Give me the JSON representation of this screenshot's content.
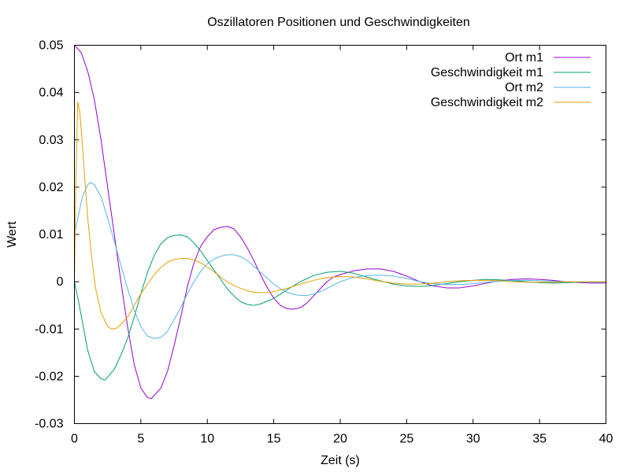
{
  "chart_data": {
    "type": "line",
    "title": "Oszillatoren Positionen und Geschwindigkeiten",
    "xlabel": "Zeit (s)",
    "ylabel": "Wert",
    "xlim": [
      0,
      40
    ],
    "ylim": [
      -0.03,
      0.05
    ],
    "x_ticks": [
      0,
      5,
      10,
      15,
      20,
      25,
      30,
      35,
      40
    ],
    "y_ticks": [
      -0.03,
      -0.02,
      -0.01,
      0,
      0.01,
      0.02,
      0.03,
      0.04,
      0.05
    ],
    "x_tick_labels": [
      "0",
      "5",
      "10",
      "15",
      "20",
      "25",
      "30",
      "35",
      "40"
    ],
    "y_tick_labels": [
      "-0.03",
      "-0.02",
      "-0.01",
      "0",
      "0.01",
      "0.02",
      "0.03",
      "0.04",
      "0.05"
    ],
    "grid": false,
    "legend_position": "top-right",
    "series": [
      {
        "name": "Ort m1",
        "color": "#9400d3",
        "points": [
          [
            0,
            0.05
          ],
          [
            0.5,
            0.0485
          ],
          [
            1,
            0.0445
          ],
          [
            1.5,
            0.0385
          ],
          [
            2,
            0.03
          ],
          [
            2.5,
            0.02
          ],
          [
            3,
            0.01
          ],
          [
            3.5,
            0.0
          ],
          [
            4,
            -0.0095
          ],
          [
            4.5,
            -0.0175
          ],
          [
            5,
            -0.0225
          ],
          [
            5.5,
            -0.0245
          ],
          [
            5.8,
            -0.0247
          ],
          [
            6.5,
            -0.0225
          ],
          [
            7,
            -0.019
          ],
          [
            7.5,
            -0.0135
          ],
          [
            8,
            -0.0075
          ],
          [
            8.5,
            -0.001
          ],
          [
            9,
            0.004
          ],
          [
            9.5,
            0.0075
          ],
          [
            10,
            0.0095
          ],
          [
            10.5,
            0.011
          ],
          [
            11,
            0.0115
          ],
          [
            11.5,
            0.0117
          ],
          [
            12,
            0.0112
          ],
          [
            12.5,
            0.0095
          ],
          [
            13,
            0.0072
          ],
          [
            13.5,
            0.0045
          ],
          [
            14,
            0.0015
          ],
          [
            14.5,
            -0.0012
          ],
          [
            15,
            -0.0035
          ],
          [
            15.5,
            -0.005
          ],
          [
            16,
            -0.0057
          ],
          [
            16.5,
            -0.0058
          ],
          [
            17,
            -0.0055
          ],
          [
            17.5,
            -0.0045
          ],
          [
            18,
            -0.003
          ],
          [
            18.5,
            -0.0015
          ],
          [
            19,
            0.0
          ],
          [
            19.5,
            0.001
          ],
          [
            20,
            0.0015
          ],
          [
            21,
            0.0023
          ],
          [
            22,
            0.0027
          ],
          [
            23,
            0.0027
          ],
          [
            24,
            0.0022
          ],
          [
            25,
            0.0012
          ],
          [
            26,
            0.0
          ],
          [
            27,
            -0.0009
          ],
          [
            28,
            -0.0013
          ],
          [
            29,
            -0.0013
          ],
          [
            30,
            -0.0009
          ],
          [
            31,
            -0.0003
          ],
          [
            32,
            0.0002
          ],
          [
            33,
            0.0005
          ],
          [
            34,
            0.0006
          ],
          [
            35,
            0.0005
          ],
          [
            36,
            0.0003
          ],
          [
            37,
            0.0
          ],
          [
            38,
            -0.0002
          ],
          [
            39,
            -0.0003
          ],
          [
            40,
            -0.0003
          ]
        ]
      },
      {
        "name": "Geschwindigkeit m1",
        "color": "#009e73",
        "points": [
          [
            0,
            0.0
          ],
          [
            0.3,
            -0.004
          ],
          [
            0.7,
            -0.01
          ],
          [
            1,
            -0.0145
          ],
          [
            1.5,
            -0.019
          ],
          [
            2,
            -0.0205
          ],
          [
            2.3,
            -0.0208
          ],
          [
            3,
            -0.0185
          ],
          [
            3.5,
            -0.0155
          ],
          [
            4,
            -0.012
          ],
          [
            4.5,
            -0.0075
          ],
          [
            5,
            -0.0025
          ],
          [
            5.5,
            0.002
          ],
          [
            6,
            0.0055
          ],
          [
            6.5,
            0.008
          ],
          [
            7,
            0.0093
          ],
          [
            7.5,
            0.0098
          ],
          [
            8,
            0.0099
          ],
          [
            8.5,
            0.0095
          ],
          [
            9,
            0.0082
          ],
          [
            9.5,
            0.0065
          ],
          [
            10,
            0.0045
          ],
          [
            10.5,
            0.0025
          ],
          [
            11,
            0.0005
          ],
          [
            11.5,
            -0.0015
          ],
          [
            12,
            -0.003
          ],
          [
            12.5,
            -0.0042
          ],
          [
            13,
            -0.0048
          ],
          [
            13.5,
            -0.005
          ],
          [
            14,
            -0.0047
          ],
          [
            15,
            -0.0035
          ],
          [
            16,
            -0.0017
          ],
          [
            17,
            0.0
          ],
          [
            18,
            0.0013
          ],
          [
            19,
            0.002
          ],
          [
            20,
            0.0022
          ],
          [
            21,
            0.0018
          ],
          [
            22,
            0.001
          ],
          [
            23,
            0.0002
          ],
          [
            24,
            -0.0005
          ],
          [
            25,
            -0.0009
          ],
          [
            26,
            -0.001
          ],
          [
            27,
            -0.0008
          ],
          [
            28,
            -0.0004
          ],
          [
            29,
            0.0
          ],
          [
            30,
            0.0003
          ],
          [
            31,
            0.0005
          ],
          [
            32,
            0.0004
          ],
          [
            33,
            0.0002
          ],
          [
            34,
            0.0
          ],
          [
            35,
            -0.0002
          ],
          [
            36,
            -0.0003
          ],
          [
            37,
            -0.0002
          ],
          [
            38,
            -0.0001
          ],
          [
            39,
            0.0
          ],
          [
            40,
            0.0
          ]
        ]
      },
      {
        "name": "Ort m2",
        "color": "#56b4e9",
        "points": [
          [
            0,
            0.01
          ],
          [
            0.3,
            0.014
          ],
          [
            0.6,
            0.018
          ],
          [
            1,
            0.0205
          ],
          [
            1.2,
            0.021
          ],
          [
            1.5,
            0.0205
          ],
          [
            2,
            0.018
          ],
          [
            2.5,
            0.0135
          ],
          [
            3,
            0.0085
          ],
          [
            3.5,
            0.0035
          ],
          [
            4,
            -0.0015
          ],
          [
            4.5,
            -0.006
          ],
          [
            5,
            -0.0095
          ],
          [
            5.5,
            -0.0115
          ],
          [
            6,
            -0.012
          ],
          [
            6.5,
            -0.0118
          ],
          [
            7,
            -0.0105
          ],
          [
            7.5,
            -0.008
          ],
          [
            8,
            -0.0055
          ],
          [
            8.5,
            -0.0025
          ],
          [
            9,
            0.0
          ],
          [
            9.5,
            0.0022
          ],
          [
            10,
            0.0038
          ],
          [
            10.5,
            0.0048
          ],
          [
            11,
            0.0054
          ],
          [
            11.5,
            0.0057
          ],
          [
            12,
            0.0057
          ],
          [
            12.5,
            0.0053
          ],
          [
            13,
            0.0045
          ],
          [
            13.5,
            0.0033
          ],
          [
            14,
            0.002
          ],
          [
            14.5,
            0.0008
          ],
          [
            15,
            -0.0005
          ],
          [
            15.5,
            -0.0015
          ],
          [
            16,
            -0.0022
          ],
          [
            16.5,
            -0.0027
          ],
          [
            17,
            -0.0029
          ],
          [
            17.5,
            -0.0029
          ],
          [
            18,
            -0.0026
          ],
          [
            18.5,
            -0.0021
          ],
          [
            19,
            -0.0014
          ],
          [
            20,
            0.0
          ],
          [
            21,
            0.0009
          ],
          [
            22,
            0.0013
          ],
          [
            23,
            0.0014
          ],
          [
            24,
            0.0012
          ],
          [
            25,
            0.0007
          ],
          [
            26,
            0.0
          ],
          [
            27,
            -0.0004
          ],
          [
            28,
            -0.0006
          ],
          [
            29,
            -0.0006
          ],
          [
            30,
            -0.0004
          ],
          [
            31,
            -0.0001
          ],
          [
            32,
            0.0001
          ],
          [
            33,
            0.0003
          ],
          [
            34,
            0.0003
          ],
          [
            35,
            0.0002
          ],
          [
            36,
            0.0001
          ],
          [
            37,
            0.0
          ],
          [
            38,
            -0.0001
          ],
          [
            39,
            -0.0001
          ],
          [
            40,
            -0.0001
          ]
        ]
      },
      {
        "name": "Geschwindigkeit m2",
        "color": "#e69f00",
        "points": [
          [
            0,
            0.0
          ],
          [
            0.1,
            0.02
          ],
          [
            0.25,
            0.038
          ],
          [
            0.4,
            0.036
          ],
          [
            0.6,
            0.029
          ],
          [
            0.8,
            0.021
          ],
          [
            1,
            0.0135
          ],
          [
            1.3,
            0.005
          ],
          [
            1.6,
            -0.0015
          ],
          [
            2,
            -0.0065
          ],
          [
            2.5,
            -0.0095
          ],
          [
            2.8,
            -0.01
          ],
          [
            3.2,
            -0.0098
          ],
          [
            3.5,
            -0.009
          ],
          [
            4,
            -0.0075
          ],
          [
            4.5,
            -0.005
          ],
          [
            5,
            -0.0025
          ],
          [
            5.5,
            -0.0005
          ],
          [
            6,
            0.0015
          ],
          [
            6.5,
            0.003
          ],
          [
            7,
            0.0041
          ],
          [
            7.5,
            0.0047
          ],
          [
            8,
            0.0049
          ],
          [
            8.5,
            0.0049
          ],
          [
            9,
            0.0046
          ],
          [
            9.5,
            0.004
          ],
          [
            10,
            0.0031
          ],
          [
            10.5,
            0.0021
          ],
          [
            11,
            0.001
          ],
          [
            11.5,
            0.0
          ],
          [
            12,
            -0.0008
          ],
          [
            12.5,
            -0.0014
          ],
          [
            13,
            -0.0019
          ],
          [
            13.5,
            -0.0022
          ],
          [
            14,
            -0.0023
          ],
          [
            14.5,
            -0.0023
          ],
          [
            15,
            -0.0021
          ],
          [
            16,
            -0.0014
          ],
          [
            17,
            -0.0005
          ],
          [
            18,
            0.0003
          ],
          [
            19,
            0.0009
          ],
          [
            20,
            0.0011
          ],
          [
            21,
            0.001
          ],
          [
            22,
            0.0006
          ],
          [
            23,
            0.0001
          ],
          [
            24,
            -0.0003
          ],
          [
            25,
            -0.0005
          ],
          [
            26,
            -0.0005
          ],
          [
            27,
            -0.0003
          ],
          [
            28,
            0.0
          ],
          [
            29,
            0.0002
          ],
          [
            30,
            0.0003
          ],
          [
            31,
            0.0003
          ],
          [
            32,
            0.0002
          ],
          [
            33,
            0.0
          ],
          [
            34,
            -0.0001
          ],
          [
            35,
            -0.0001
          ],
          [
            36,
            -0.0001
          ],
          [
            37,
            0.0
          ],
          [
            38,
            0.0
          ],
          [
            39,
            0.0
          ],
          [
            40,
            0.0
          ]
        ]
      }
    ]
  }
}
